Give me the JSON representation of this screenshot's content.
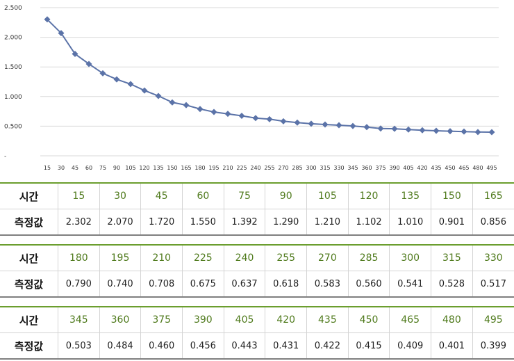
{
  "chart_data": {
    "type": "line",
    "title": "",
    "xlabel": "",
    "ylabel": "",
    "x": [
      15,
      30,
      45,
      60,
      75,
      90,
      105,
      120,
      135,
      150,
      165,
      180,
      195,
      210,
      225,
      240,
      255,
      270,
      285,
      300,
      315,
      330,
      345,
      360,
      375,
      390,
      405,
      420,
      435,
      450,
      465,
      480,
      495
    ],
    "series": [
      {
        "values": [
          2.302,
          2.07,
          1.72,
          1.55,
          1.392,
          1.29,
          1.21,
          1.102,
          1.01,
          0.901,
          0.856,
          0.79,
          0.74,
          0.708,
          0.675,
          0.637,
          0.618,
          0.583,
          0.56,
          0.541,
          0.528,
          0.517,
          0.503,
          0.484,
          0.46,
          0.456,
          0.443,
          0.431,
          0.422,
          0.415,
          0.409,
          0.401,
          0.399
        ]
      }
    ],
    "ylim": [
      0,
      2.5
    ],
    "yticks": [
      "-",
      "0.500",
      "1.000",
      "1.500",
      "2.000",
      "2.500"
    ],
    "grid": true,
    "line_color": "#5b73a8",
    "marker": "diamond"
  },
  "table": {
    "time_label": "시간",
    "value_label": "측정값",
    "rows": [
      {
        "times": [
          "15",
          "30",
          "45",
          "60",
          "75",
          "90",
          "105",
          "120",
          "135",
          "150",
          "165"
        ],
        "values": [
          "2.302",
          "2.070",
          "1.720",
          "1.550",
          "1.392",
          "1.290",
          "1.210",
          "1.102",
          "1.010",
          "0.901",
          "0.856"
        ]
      },
      {
        "times": [
          "180",
          "195",
          "210",
          "225",
          "240",
          "255",
          "270",
          "285",
          "300",
          "315",
          "330"
        ],
        "values": [
          "0.790",
          "0.740",
          "0.708",
          "0.675",
          "0.637",
          "0.618",
          "0.583",
          "0.560",
          "0.541",
          "0.528",
          "0.517"
        ]
      },
      {
        "times": [
          "345",
          "360",
          "375",
          "390",
          "405",
          "420",
          "435",
          "450",
          "465",
          "480",
          "495"
        ],
        "values": [
          "0.503",
          "0.484",
          "0.460",
          "0.456",
          "0.443",
          "0.431",
          "0.422",
          "0.415",
          "0.409",
          "0.401",
          "0.399"
        ]
      }
    ],
    "time_color": "#4f7a1c"
  }
}
